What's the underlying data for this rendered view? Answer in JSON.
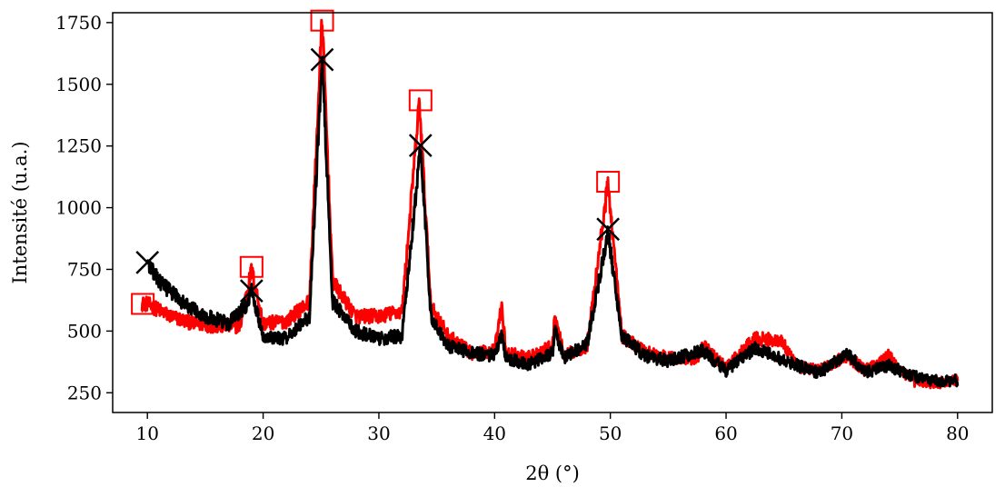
{
  "chart_data": {
    "type": "line",
    "xlabel": "2θ (°)",
    "ylabel": "Intensité (u.a.)",
    "xlim": [
      7,
      83
    ],
    "ylim": [
      170,
      1790
    ],
    "xticks": [
      10,
      20,
      30,
      40,
      50,
      60,
      70,
      80
    ],
    "yticks": [
      250,
      500,
      750,
      1000,
      1250,
      1500,
      1750
    ],
    "grid": false,
    "legend": "none",
    "series": [
      {
        "color": "#ff0000",
        "line_width": 3,
        "noise": 30,
        "profile": {
          "x": [
            9.5,
            10,
            12,
            14,
            16,
            18,
            19,
            20,
            22,
            24,
            25.1,
            26,
            28,
            30,
            32,
            33.5,
            34.5,
            36,
            38,
            40,
            40.6,
            41,
            43,
            45,
            45.2,
            46,
            48,
            49.8,
            51,
            53,
            55,
            57.5,
            58,
            60,
            62.5,
            64.8,
            66,
            68,
            70.5,
            72,
            74,
            76,
            78,
            80
          ],
          "y": [
            610,
            610,
            560,
            530,
            520,
            520,
            750,
            530,
            540,
            620,
            1775,
            700,
            560,
            560,
            580,
            1430,
            600,
            480,
            410,
            420,
            600,
            410,
            395,
            440,
            560,
            400,
            440,
            1100,
            480,
            420,
            390,
            390,
            440,
            350,
            470,
            460,
            360,
            340,
            400,
            340,
            400,
            300,
            290,
            300
          ]
        },
        "markers": {
          "shape": "square",
          "points": [
            [
              9.6,
              610
            ],
            [
              19.0,
              760
            ],
            [
              25.1,
              1758
            ],
            [
              33.6,
              1435
            ],
            [
              49.8,
              1105
            ]
          ]
        }
      },
      {
        "color": "#000000",
        "line_width": 3,
        "noise": 30,
        "profile": {
          "x": [
            10,
            11,
            13,
            15,
            17,
            18.5,
            19,
            20,
            22,
            24,
            25.1,
            26,
            28,
            30,
            32,
            33.6,
            34.5,
            36,
            38,
            40,
            40.6,
            41,
            43,
            45,
            45.2,
            46,
            48,
            49.8,
            51,
            53,
            55,
            58,
            60,
            62.5,
            65,
            68,
            70.5,
            72,
            74,
            76,
            78,
            80
          ],
          "y": [
            780,
            700,
            620,
            560,
            530,
            600,
            660,
            480,
            470,
            560,
            1600,
            620,
            500,
            470,
            480,
            1250,
            560,
            440,
            410,
            400,
            480,
            390,
            365,
            410,
            500,
            390,
            450,
            900,
            480,
            400,
            380,
            420,
            340,
            430,
            380,
            330,
            410,
            330,
            360,
            320,
            300,
            300
          ]
        },
        "markers": {
          "shape": "x",
          "points": [
            [
              10.0,
              778
            ],
            [
              19.0,
              663
            ],
            [
              25.1,
              1600
            ],
            [
              33.6,
              1252
            ],
            [
              49.8,
              913
            ]
          ]
        }
      }
    ]
  }
}
